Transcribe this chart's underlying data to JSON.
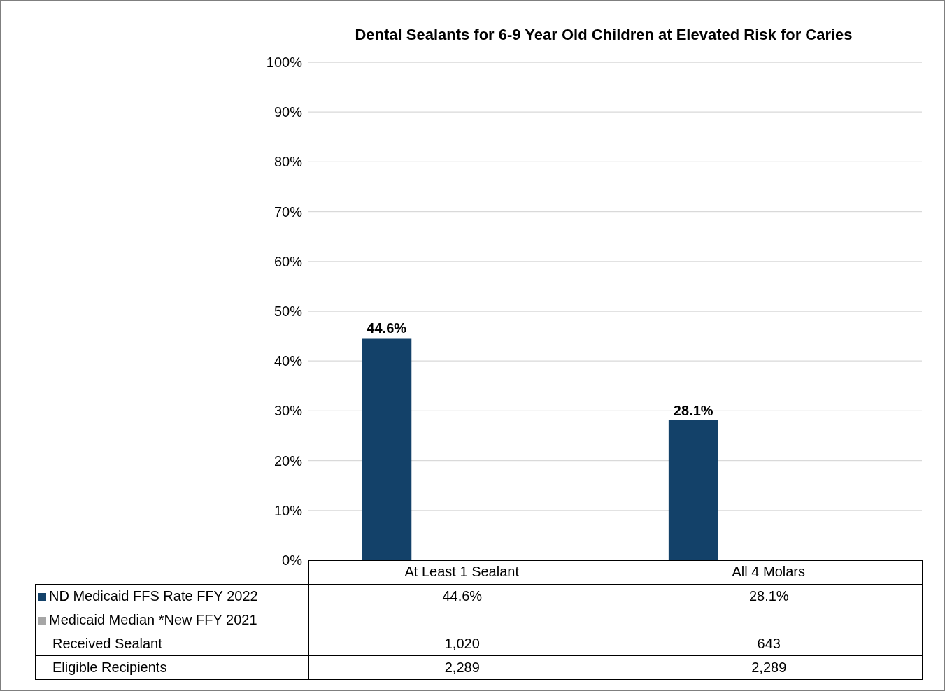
{
  "chart_data": {
    "type": "bar",
    "title": "Dental Sealants for 6-9 Year Old Children at Elevated Risk for Caries",
    "categories": [
      "At Least 1 Sealant",
      "All 4 Molars"
    ],
    "series": [
      {
        "name": "ND Medicaid FFS Rate FFY 2022",
        "color": "#134169",
        "values": [
          44.6,
          28.1
        ],
        "value_labels": [
          "44.6%",
          "28.1%"
        ]
      },
      {
        "name": "Medicaid Median *New FFY 2021",
        "color": "#a6a6a6",
        "values": [
          null,
          null
        ]
      },
      {
        "name": "Received Sealant",
        "type": "other",
        "values": [
          null,
          null
        ],
        "value_labels": [
          "1,020",
          "643"
        ]
      },
      {
        "name": "Eligible Recipients",
        "type": "other",
        "values": [
          null,
          null
        ],
        "value_labels": [
          "2,289",
          "2,289"
        ]
      }
    ],
    "ylim": [
      0,
      100
    ],
    "yticks": [
      {
        "value": 0,
        "label": "0%"
      },
      {
        "value": 10,
        "label": "10%"
      },
      {
        "value": 20,
        "label": "20%"
      },
      {
        "value": 30,
        "label": "30%"
      },
      {
        "value": 40,
        "label": "40%"
      },
      {
        "value": 50,
        "label": "50%"
      },
      {
        "value": 60,
        "label": "60%"
      },
      {
        "value": 70,
        "label": "70%"
      },
      {
        "value": 80,
        "label": "80%"
      },
      {
        "value": 90,
        "label": "90%"
      },
      {
        "value": 100,
        "label": "100%"
      }
    ],
    "grid": "y",
    "legend": "bottom",
    "data_labels": true
  }
}
